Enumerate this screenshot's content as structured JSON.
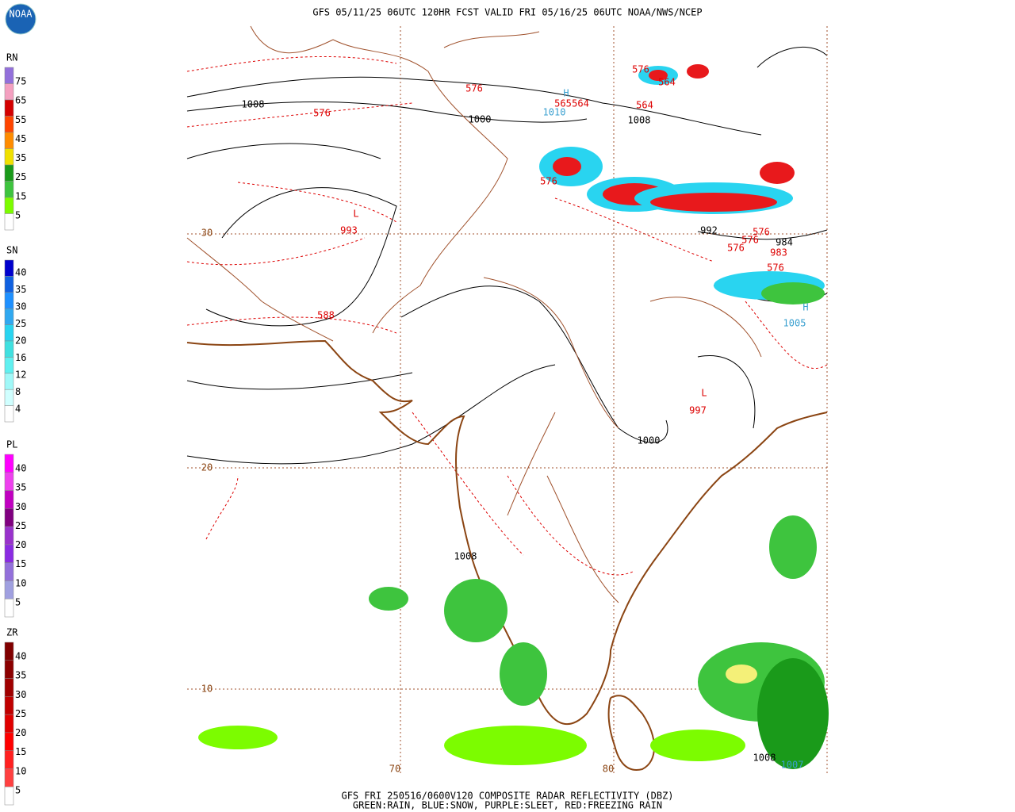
{
  "header": {
    "title": "GFS 05/11/25 06UTC 120HR FCST VALID FRI 05/16/25 06UTC NOAA/NWS/NCEP",
    "logo": "NOAA"
  },
  "legends": [
    {
      "name": "RN",
      "labels": [
        "75",
        "65",
        "55",
        "45",
        "35",
        "25",
        "15",
        "5"
      ]
    },
    {
      "name": "SN",
      "labels": [
        "40",
        "35",
        "30",
        "25",
        "20",
        "16",
        "12",
        "8",
        "4"
      ]
    },
    {
      "name": "PL",
      "labels": [
        "40",
        "35",
        "30",
        "25",
        "20",
        "15",
        "10",
        "5"
      ]
    },
    {
      "name": "ZR",
      "labels": [
        "40",
        "35",
        "30",
        "25",
        "20",
        "15",
        "10",
        "5"
      ]
    }
  ],
  "map": {
    "labels": [
      "1008",
      "576",
      "576",
      "1000",
      "576",
      "564",
      "565",
      "564",
      "1010",
      "H",
      "564",
      "1008",
      "576",
      "L",
      "993",
      "30",
      "992",
      "576",
      "576",
      "984",
      "576",
      "983",
      "576",
      "H",
      "1005",
      "588",
      "L",
      "997",
      "1000",
      "20",
      "1008",
      "10",
      "70",
      "80",
      "1008",
      "1007"
    ]
  },
  "footer": {
    "line1": "GFS FRI 250516/0600V120 COMPOSITE RADAR REFLECTIVITY (DBZ)",
    "line2": "GREEN:RAIN, BLUE:SNOW, PURPLE:SLEET, RED:FREEZING RAIN"
  }
}
